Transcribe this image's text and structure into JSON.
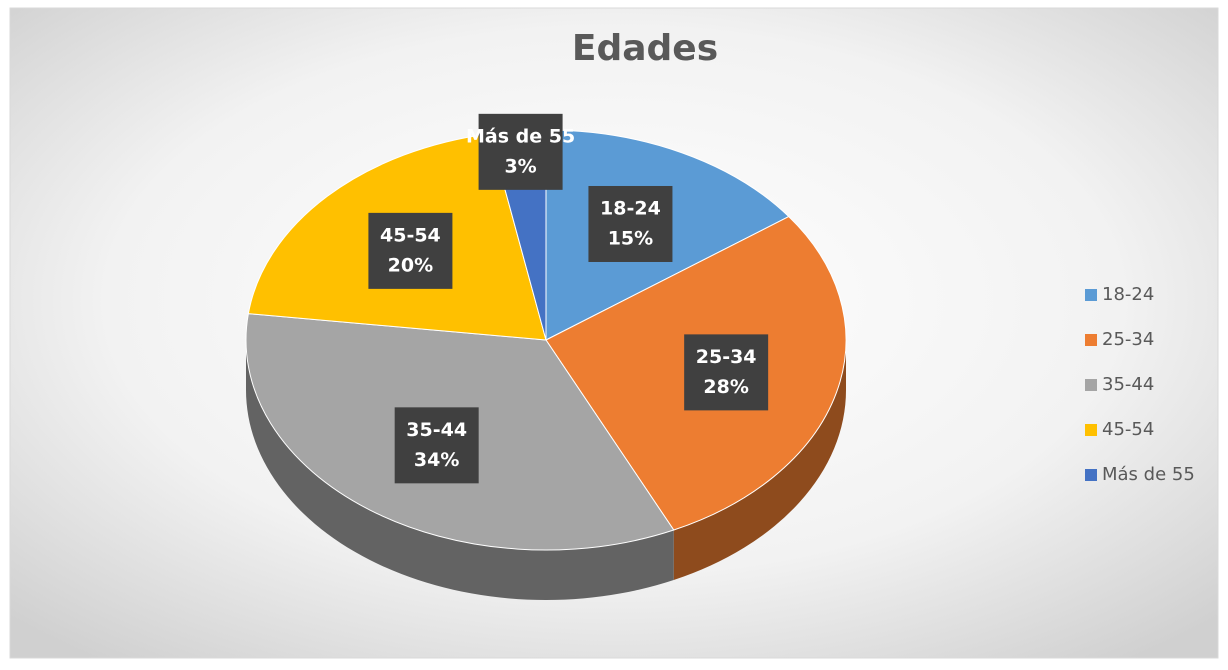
{
  "chart_data": {
    "type": "pie",
    "title": "Edades",
    "categories": [
      "18-24",
      "25-34",
      "35-44",
      "45-54",
      "Más de 55"
    ],
    "values": [
      15,
      28,
      34,
      20,
      3
    ],
    "value_labels": [
      "15%",
      "28%",
      "34%",
      "20%",
      "3%"
    ],
    "colors": [
      "#5b9bd5",
      "#ed7d31",
      "#a5a5a5",
      "#ffc000",
      "#4472c4"
    ],
    "legend": "right"
  }
}
